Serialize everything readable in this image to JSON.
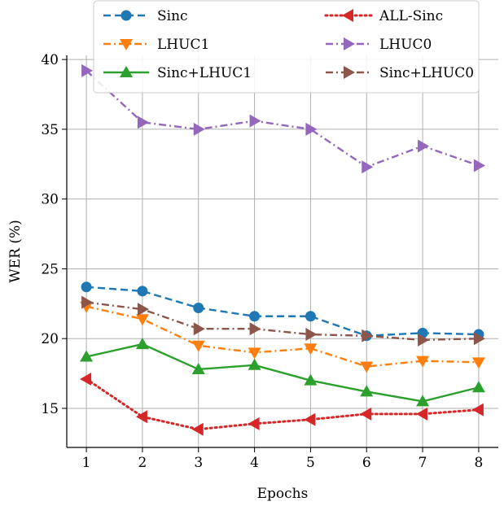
{
  "chart_data": {
    "type": "line",
    "xlabel": "Epochs",
    "ylabel": "WER (%)",
    "x": [
      1,
      2,
      3,
      4,
      5,
      6,
      7,
      8
    ],
    "xlim": [
      0.65,
      8.35
    ],
    "ylim": [
      12.2,
      40.3
    ],
    "xticks": [
      1,
      2,
      3,
      4,
      5,
      6,
      7,
      8
    ],
    "yticks": [
      15,
      20,
      25,
      30,
      35,
      40
    ],
    "grid": true,
    "legend": "top-center",
    "series": [
      {
        "name": "Sinc",
        "color": "#1f77b4",
        "marker": "circle",
        "dash": "dashed",
        "values": [
          23.7,
          23.4,
          22.2,
          21.6,
          21.6,
          20.2,
          20.4,
          20.3
        ]
      },
      {
        "name": "ALL-Sinc",
        "color": "#d62728",
        "marker": "triangle-left",
        "dash": "dotted",
        "values": [
          17.1,
          14.4,
          13.5,
          13.9,
          14.2,
          14.6,
          14.6,
          14.9
        ]
      },
      {
        "name": "LHUC1",
        "color": "#ff7f0e",
        "marker": "triangle-down",
        "dash": "dashdot",
        "values": [
          22.3,
          21.4,
          19.5,
          19.0,
          19.3,
          18.0,
          18.4,
          18.3
        ]
      },
      {
        "name": "LHUC0",
        "color": "#9467bd",
        "marker": "triangle-right",
        "dash": "dashdot",
        "values": [
          39.2,
          35.5,
          35.0,
          35.6,
          35.0,
          32.3,
          33.8,
          32.4
        ]
      },
      {
        "name": "Sinc+LHUC1",
        "color": "#2ca02c",
        "marker": "triangle-up",
        "dash": "solid",
        "values": [
          18.7,
          19.6,
          17.8,
          18.1,
          17.0,
          16.2,
          15.5,
          16.5
        ]
      },
      {
        "name": "Sinc+LHUC0",
        "color": "#8c564b",
        "marker": "triangle-right",
        "dash": "dashdot",
        "values": [
          22.6,
          22.1,
          20.7,
          20.7,
          20.3,
          20.2,
          19.9,
          20.0
        ]
      }
    ]
  }
}
